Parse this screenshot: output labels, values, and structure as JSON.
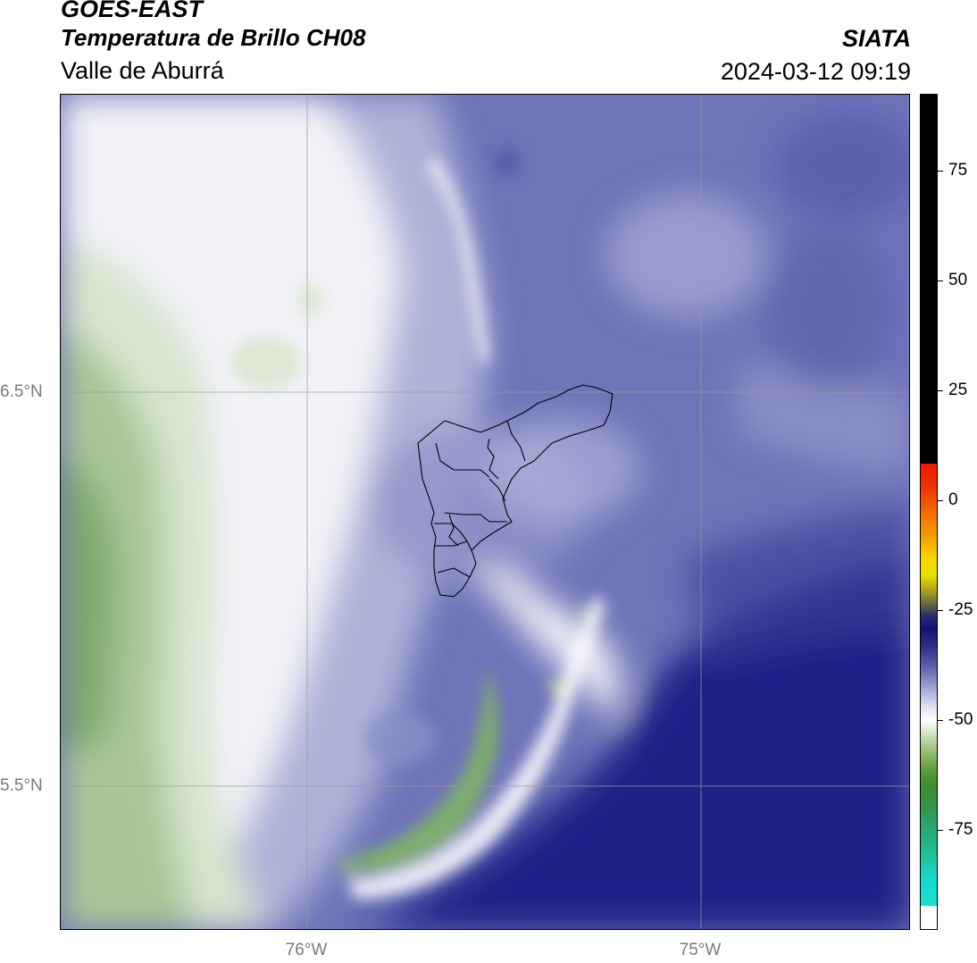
{
  "header": {
    "satellite": "GOES-EAST",
    "product": "Temperatura de Brillo CH08",
    "region": "Valle de Aburrá",
    "organization": "SIATA",
    "datetime": "2024-03-12 09:19"
  },
  "axes": {
    "lat_labels": [
      "6.5°N",
      "5.5°N"
    ],
    "lon_labels": [
      "76°W",
      "75°W"
    ]
  },
  "colorbar": {
    "tick_labels": [
      "75",
      "50",
      "25",
      "0",
      "-25",
      "-50",
      "-75"
    ],
    "colors": {
      "cyan": "#18e0d0",
      "teal_green": "#2f9a56",
      "green": "#4e8a2a",
      "light_green": "#d6e6c8",
      "white": "#f8f8fb",
      "lavender": "#c9cce6",
      "blue_purple": "#6e73b8",
      "navy": "#1a1f7e",
      "dark_navy": "#0f1470",
      "olive": "#8a8a1a",
      "yellow": "#f5e400",
      "orange": "#f59000",
      "red": "#f01a00",
      "black": "#000000"
    }
  },
  "map_colors": {
    "deep_blue": "#1c2284",
    "mid_blue": "#5a60ac",
    "light_purple": "#9ea2d0",
    "pale": "#dfe0ef",
    "white": "#fbfbfd",
    "pale_green": "#dbe7d2",
    "mid_green": "#a9c69a",
    "green": "#7faa6c"
  }
}
